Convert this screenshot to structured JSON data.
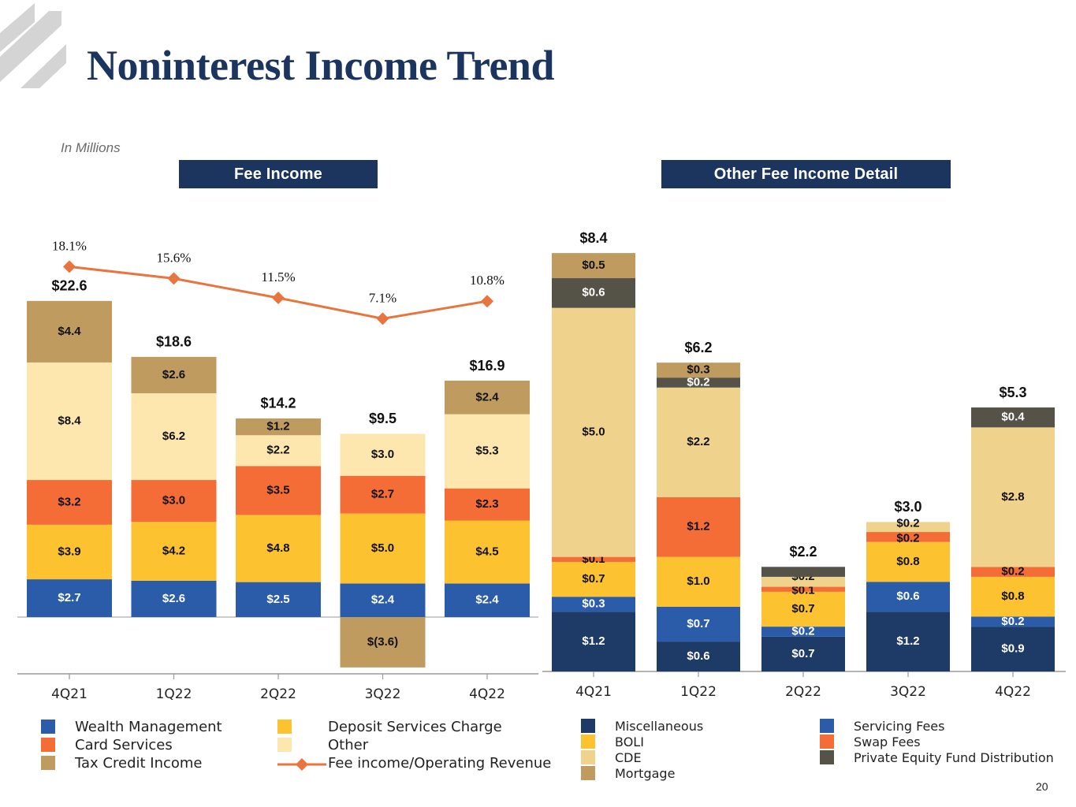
{
  "header": {
    "title": "Noninterest Income Trend",
    "units_note": "In Millions"
  },
  "panels": {
    "fee_title": "Fee Income",
    "other_title": "Other Fee Income Detail"
  },
  "page_number": "20",
  "colors": {
    "title": "#1b355e",
    "header_bg": "#1b355e",
    "line": "#e8753e",
    "axis": "#9a9a9a"
  },
  "chart_data": [
    {
      "type": "bar",
      "stacked": true,
      "categories": [
        "4Q21",
        "1Q22",
        "2Q22",
        "3Q22",
        "4Q22"
      ],
      "totals": [
        "$22.6",
        "$18.6",
        "$14.2",
        "$9.5",
        "$16.9"
      ],
      "ylim": [
        -3.6,
        22.6
      ],
      "series": [
        {
          "name": "Wealth Management",
          "color": "#2a5caa",
          "label_color": "#ffffff",
          "values": [
            2.7,
            2.6,
            2.5,
            2.4,
            2.4
          ],
          "labels": [
            "$2.7",
            "$2.6",
            "$2.5",
            "$2.4",
            "$2.4"
          ]
        },
        {
          "name": "Deposit Services Charge",
          "color": "#fcc22f",
          "label_color": "#111111",
          "values": [
            3.9,
            4.2,
            4.8,
            5.0,
            4.5
          ],
          "labels": [
            "$3.9",
            "$4.2",
            "$4.8",
            "$5.0",
            "$4.5"
          ]
        },
        {
          "name": "Card Services",
          "color": "#f56d36",
          "label_color": "#111111",
          "values": [
            3.2,
            3.0,
            3.5,
            2.7,
            2.3
          ],
          "labels": [
            "$3.2",
            "$3.0",
            "$3.5",
            "$2.7",
            "$2.3"
          ]
        },
        {
          "name": "Other",
          "color": "#fde7ae",
          "label_color": "#111111",
          "values": [
            8.4,
            6.2,
            2.2,
            3.0,
            5.3
          ],
          "labels": [
            "$8.4",
            "$6.2",
            "$2.2",
            "$3.0",
            "$5.3"
          ]
        },
        {
          "name": "Tax Credit Income",
          "color": "#bf9b5f",
          "label_color": "#111111",
          "values": [
            4.4,
            2.6,
            1.2,
            -3.6,
            2.4
          ],
          "labels": [
            "$4.4",
            "$2.6",
            "$1.2",
            "$(3.6)",
            "$2.4"
          ]
        }
      ],
      "line_series": {
        "name": "Fee income/Operating Revenue",
        "values": [
          18.1,
          15.6,
          11.5,
          7.1,
          10.8
        ],
        "labels": [
          "18.1%",
          "15.6%",
          "11.5%",
          "7.1%",
          "10.8%"
        ],
        "color": "#e8753e"
      },
      "legend": [
        [
          "Wealth Management",
          "Card Services",
          "Tax Credit Income"
        ],
        [
          "Deposit Services Charge",
          "Other",
          "Fee income/Operating Revenue"
        ]
      ]
    },
    {
      "type": "bar",
      "stacked": true,
      "categories": [
        "4Q21",
        "1Q22",
        "2Q22",
        "3Q22",
        "4Q22"
      ],
      "totals": [
        "$8.4",
        "$6.2",
        "$2.2",
        "$3.0",
        "$5.3"
      ],
      "ylim": [
        0,
        8.4
      ],
      "series": [
        {
          "name": "Miscellaneous",
          "color": "#1e3a66",
          "label_color": "#ffffff",
          "values": [
            1.2,
            0.6,
            0.7,
            1.2,
            0.9
          ],
          "labels": [
            "$1.2",
            "$0.6",
            "$0.7",
            "$1.2",
            "$0.9"
          ]
        },
        {
          "name": "Servicing Fees",
          "color": "#2a5caa",
          "label_color": "#ffffff",
          "values": [
            0.3,
            0.7,
            0.2,
            0.6,
            0.2
          ],
          "labels": [
            "$0.3",
            "$0.7",
            "$0.2",
            "$0.6",
            "$0.2"
          ]
        },
        {
          "name": "BOLI",
          "color": "#fcc22f",
          "label_color": "#111111",
          "values": [
            0.7,
            1.0,
            0.7,
            0.8,
            0.8
          ],
          "labels": [
            "$0.7",
            "$1.0",
            "$0.7",
            "$0.8",
            "$0.8"
          ]
        },
        {
          "name": "Swap Fees",
          "color": "#f56d36",
          "label_color": "#111111",
          "values": [
            0.1,
            1.2,
            0.1,
            0.2,
            0.2
          ],
          "labels": [
            "$0.1",
            "$1.2",
            "$0.1",
            "$0.2",
            "$0.2"
          ]
        },
        {
          "name": "CDE",
          "color": "#efd28c",
          "label_color": "#111111",
          "values": [
            5.0,
            2.2,
            0.2,
            0.2,
            2.8
          ],
          "labels": [
            "$5.0",
            "$2.2",
            "$0.2",
            "$0.2",
            "$2.8"
          ]
        },
        {
          "name": "Private Equity Fund Distribution",
          "color": "#555248",
          "label_color": "#ffffff",
          "values": [
            0.6,
            0.2,
            0.2,
            0,
            0.4
          ],
          "labels": [
            "$0.6",
            "$0.2",
            "$0.2",
            "",
            "$0.4"
          ]
        },
        {
          "name": "Mortgage",
          "color": "#bf9b5f",
          "label_color": "#111111",
          "values": [
            0.5,
            0.3,
            0,
            0,
            0
          ],
          "labels": [
            "$0.5",
            "$0.3",
            "",
            "",
            ""
          ]
        }
      ],
      "legend": [
        [
          "Miscellaneous",
          "BOLI",
          "CDE",
          "Mortgage"
        ],
        [
          "Servicing Fees",
          "Swap Fees",
          "Private Equity Fund Distribution"
        ]
      ]
    }
  ]
}
